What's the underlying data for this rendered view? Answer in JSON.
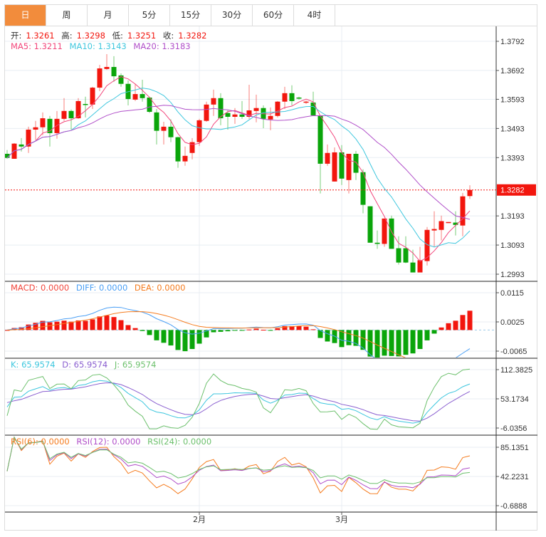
{
  "tabs": [
    "日",
    "周",
    "月",
    "5分",
    "15分",
    "30分",
    "60分",
    "4时"
  ],
  "active_tab": 0,
  "ohlc_legend": {
    "open_label": "开:",
    "open": "1.3261",
    "high_label": "高:",
    "high": "1.3298",
    "low_label": "低:",
    "low": "1.3251",
    "close_label": "收:",
    "close": "1.3282"
  },
  "ma_legend": {
    "ma5": "MA5: 1.3211",
    "ma10": "MA10: 1.3143",
    "ma20": "MA20: 1.3183"
  },
  "macd_legend": {
    "macd": "MACD: 0.0000",
    "diff": "DIFF: 0.0000",
    "dea": "DEA: 0.0000"
  },
  "kdj_legend": {
    "k": "K: 65.9574",
    "d": "D: 65.9574",
    "j": "J: 65.9574"
  },
  "rsi_legend": {
    "rsi6": "RSI(6): 0.0000",
    "rsi12": "RSI(12): 0.0000",
    "rsi24": "RSI(24): 0.0000"
  },
  "colors": {
    "up": "#f2160e",
    "down": "#0aa50a",
    "ma5": "#f2467c",
    "ma10": "#3fc7de",
    "ma20": "#b04fc9",
    "diff": "#4a9ff5",
    "dea": "#f57c1f",
    "k": "#3cc6de",
    "d": "#8a5fd0",
    "j": "#6cc06c",
    "rsi6": "#f57c1f",
    "rsi12": "#b04fc9",
    "rsi24": "#6cc06c",
    "active_tab": "#f28c3c"
  },
  "chart_data": {
    "type": "candlestick",
    "last_price": "1.3282",
    "price_ticks": [
      "1.3792",
      "1.3692",
      "1.3593",
      "1.3493",
      "1.3393",
      "1.3193",
      "1.3093",
      "1.2993"
    ],
    "macd_ticks": [
      "0.0115",
      "0.0025",
      "-0.0065"
    ],
    "kdj_ticks": [
      "112.3825",
      "53.1734",
      "-6.0356"
    ],
    "rsi_ticks": [
      "85.1351",
      "42.2231",
      "-0.6888"
    ],
    "x_labels": [
      {
        "index": 27,
        "label": "2月"
      },
      {
        "index": 47,
        "label": "3月"
      }
    ],
    "candles": [
      [
        1.3406,
        1.3419,
        1.3389,
        1.3392
      ],
      [
        1.3389,
        1.3443,
        1.3389,
        1.3441
      ],
      [
        1.3438,
        1.346,
        1.3414,
        1.3431
      ],
      [
        1.3431,
        1.3499,
        1.3409,
        1.3489
      ],
      [
        1.3489,
        1.3519,
        1.3453,
        1.3497
      ],
      [
        1.3497,
        1.3548,
        1.347,
        1.3528
      ],
      [
        1.3526,
        1.3536,
        1.3431,
        1.3477
      ],
      [
        1.3477,
        1.3553,
        1.3458,
        1.3526
      ],
      [
        1.3526,
        1.3597,
        1.3519,
        1.3553
      ],
      [
        1.3553,
        1.3558,
        1.3489,
        1.3528
      ],
      [
        1.3528,
        1.3597,
        1.3526,
        1.3587
      ],
      [
        1.3577,
        1.3602,
        1.3531,
        1.3575
      ],
      [
        1.3575,
        1.3636,
        1.356,
        1.3633
      ],
      [
        1.3633,
        1.3711,
        1.3621,
        1.3699
      ],
      [
        1.3697,
        1.3748,
        1.3694,
        1.3704
      ],
      [
        1.3704,
        1.3741,
        1.3653,
        1.3672
      ],
      [
        1.3675,
        1.3682,
        1.3636,
        1.3646
      ],
      [
        1.3646,
        1.3658,
        1.3572,
        1.3594
      ],
      [
        1.3592,
        1.3646,
        1.3587,
        1.3611
      ],
      [
        1.3611,
        1.366,
        1.3585,
        1.3597
      ],
      [
        1.3599,
        1.3602,
        1.3546,
        1.355
      ],
      [
        1.3548,
        1.356,
        1.3438,
        1.3485
      ],
      [
        1.3485,
        1.3516,
        1.3438,
        1.3499
      ],
      [
        1.3499,
        1.3524,
        1.3446,
        1.3463
      ],
      [
        1.3463,
        1.3465,
        1.3358,
        1.338
      ],
      [
        1.338,
        1.3431,
        1.3365,
        1.3399
      ],
      [
        1.3409,
        1.346,
        1.3387,
        1.3446
      ],
      [
        1.3446,
        1.3526,
        1.3433,
        1.3521
      ],
      [
        1.3519,
        1.3585,
        1.3516,
        1.3575
      ],
      [
        1.3575,
        1.3626,
        1.3536,
        1.3597
      ],
      [
        1.3597,
        1.3614,
        1.3504,
        1.3528
      ],
      [
        1.3546,
        1.3555,
        1.3489,
        1.3533
      ],
      [
        1.3533,
        1.3563,
        1.3509,
        1.3541
      ],
      [
        1.3541,
        1.3587,
        1.3526,
        1.3533
      ],
      [
        1.3533,
        1.3643,
        1.3526,
        1.3555
      ],
      [
        1.3553,
        1.3609,
        1.3514,
        1.3563
      ],
      [
        1.3563,
        1.3572,
        1.3494,
        1.3526
      ],
      [
        1.3524,
        1.3565,
        1.3487,
        1.3536
      ],
      [
        1.3536,
        1.3587,
        1.3531,
        1.3585
      ],
      [
        1.3585,
        1.3636,
        1.356,
        1.3614
      ],
      [
        1.3614,
        1.3641,
        1.3572,
        1.3587
      ],
      [
        1.3599,
        1.3602,
        1.3592,
        1.3597
      ],
      [
        1.3582,
        1.3589,
        1.3577,
        1.3585
      ],
      [
        1.3582,
        1.3619,
        1.3536,
        1.3538
      ],
      [
        1.3538,
        1.3538,
        1.327,
        1.3372
      ],
      [
        1.3372,
        1.3438,
        1.3365,
        1.3409
      ],
      [
        1.3311,
        1.3428,
        1.3311,
        1.3411
      ],
      [
        1.3411,
        1.3436,
        1.3299,
        1.3321
      ],
      [
        1.3316,
        1.3406,
        1.327,
        1.3406
      ],
      [
        1.3406,
        1.3416,
        1.3316,
        1.3341
      ],
      [
        1.3343,
        1.3353,
        1.3202,
        1.3231
      ],
      [
        1.3226,
        1.3226,
        1.3101,
        1.3101
      ],
      [
        1.3101,
        1.3143,
        1.308,
        1.3097
      ],
      [
        1.3097,
        1.3184,
        1.3087,
        1.3184
      ],
      [
        1.3184,
        1.3194,
        1.308,
        1.308
      ],
      [
        1.3082,
        1.3123,
        1.3026,
        1.3033
      ],
      [
        1.3082,
        1.3123,
        1.3031,
        1.3033
      ],
      [
        1.3033,
        1.3077,
        1.2999,
        1.2999
      ],
      [
        1.2999,
        1.3087,
        1.2999,
        1.3041
      ],
      [
        1.3038,
        1.3155,
        1.3023,
        1.3145
      ],
      [
        1.3143,
        1.3209,
        1.3087,
        1.3148
      ],
      [
        1.3145,
        1.3194,
        1.3109,
        1.3175
      ],
      [
        1.317,
        1.3172,
        1.317,
        1.3172
      ],
      [
        1.317,
        1.3209,
        1.3126,
        1.3162
      ],
      [
        1.316,
        1.3272,
        1.3123,
        1.326
      ],
      [
        1.3261,
        1.3298,
        1.3251,
        1.3282
      ]
    ]
  }
}
